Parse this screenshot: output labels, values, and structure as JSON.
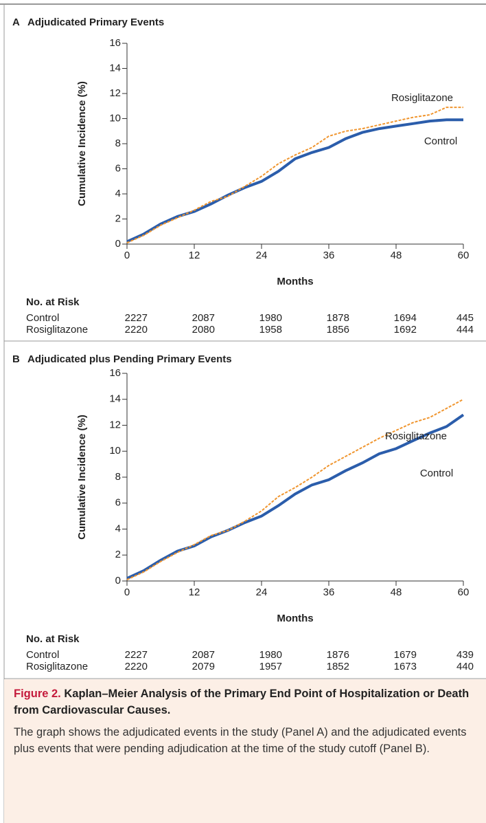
{
  "chart_data": [
    {
      "type": "line",
      "panel": "A",
      "title": "Adjudicated Primary Events",
      "ylabel": "Cumulative Incidence (%)",
      "xlabel": "Months",
      "x": [
        0,
        3,
        6,
        9,
        12,
        15,
        18,
        21,
        24,
        27,
        30,
        33,
        36,
        39,
        42,
        45,
        48,
        51,
        54,
        57,
        60
      ],
      "series": [
        {
          "name": "Control",
          "color": "#2b5dab",
          "line_style": "solid",
          "values": [
            0.2,
            0.8,
            1.6,
            2.2,
            2.6,
            3.2,
            3.9,
            4.5,
            5.0,
            5.8,
            6.8,
            7.3,
            7.7,
            8.4,
            8.9,
            9.2,
            9.4,
            9.6,
            9.8,
            9.9,
            9.9
          ],
          "at_risk": [
            2227,
            2087,
            1980,
            1878,
            1694,
            445
          ]
        },
        {
          "name": "Rosiglitazone",
          "color": "#f0952e",
          "line_style": "dashed",
          "values": [
            0.1,
            0.7,
            1.5,
            2.1,
            2.7,
            3.4,
            3.8,
            4.6,
            5.4,
            6.4,
            7.1,
            7.7,
            8.6,
            9.0,
            9.2,
            9.5,
            9.8,
            10.1,
            10.3,
            10.9,
            10.9
          ],
          "at_risk": [
            2220,
            2080,
            1958,
            1856,
            1692,
            444
          ]
        }
      ],
      "at_risk_title": "No. at Risk",
      "xlim": [
        0,
        60
      ],
      "xticks": [
        0,
        12,
        24,
        36,
        48,
        60
      ],
      "ylim": [
        0,
        16
      ],
      "yticks": [
        0,
        2,
        4,
        6,
        8,
        10,
        12,
        14,
        16
      ]
    },
    {
      "type": "line",
      "panel": "B",
      "title": "Adjudicated plus Pending Primary Events",
      "ylabel": "Cumulative Incidence (%)",
      "xlabel": "Months",
      "x": [
        0,
        3,
        6,
        9,
        12,
        15,
        18,
        21,
        24,
        27,
        30,
        33,
        36,
        39,
        42,
        45,
        48,
        51,
        54,
        57,
        60
      ],
      "series": [
        {
          "name": "Control",
          "color": "#2b5dab",
          "line_style": "solid",
          "values": [
            0.2,
            0.8,
            1.6,
            2.3,
            2.7,
            3.4,
            3.9,
            4.5,
            5.0,
            5.8,
            6.7,
            7.4,
            7.8,
            8.5,
            9.1,
            9.8,
            10.2,
            10.8,
            11.4,
            11.9,
            12.8
          ],
          "at_risk": [
            2227,
            2087,
            1980,
            1876,
            1679,
            439
          ]
        },
        {
          "name": "Rosiglitazone",
          "color": "#f0952e",
          "line_style": "dashed",
          "values": [
            0.1,
            0.7,
            1.5,
            2.2,
            2.8,
            3.5,
            3.9,
            4.6,
            5.4,
            6.5,
            7.2,
            8.0,
            8.9,
            9.6,
            10.3,
            11.0,
            11.6,
            12.2,
            12.6,
            13.3,
            14.0
          ],
          "at_risk": [
            2220,
            2079,
            1957,
            1852,
            1673,
            440
          ]
        }
      ],
      "at_risk_title": "No. at Risk",
      "xlim": [
        0,
        60
      ],
      "xticks": [
        0,
        12,
        24,
        36,
        48,
        60
      ],
      "ylim": [
        0,
        16
      ],
      "yticks": [
        0,
        2,
        4,
        6,
        8,
        10,
        12,
        14,
        16
      ]
    }
  ],
  "caption": {
    "label": "Figure 2.",
    "title": "Kaplan–Meier Analysis of the Primary End Point of Hospitalization or Death from Cardiovascular Causes.",
    "text": "The graph shows the adjudicated events in the study (Panel A) and the adjudicated events plus events that were pending adjudication at the time of the study cutoff (Panel B)."
  }
}
